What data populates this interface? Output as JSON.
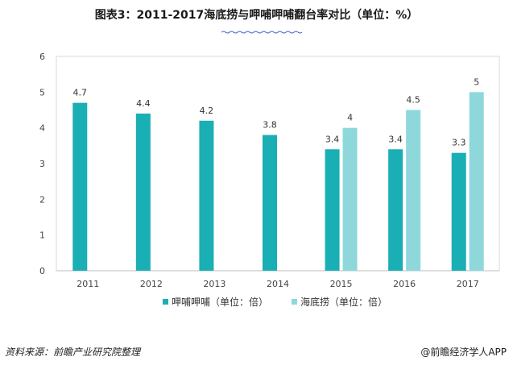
{
  "title": "图表3：2011-2017海底捞与呷哺呷哺翻台率对比（单位：%）",
  "footer": {
    "source": "资料来源：前瞻产业研究院整理",
    "brand": "@前瞻经济学人APP"
  },
  "colors": {
    "series1": "#1aaeb5",
    "series2": "#8ed8dc",
    "grid": "#d9d9d9",
    "decoration": "#3b5bdb"
  },
  "chart_data": {
    "type": "bar",
    "title": "图表3：2011-2017海底捞与呷哺呷哺翻台率对比（单位：%）",
    "categories": [
      "2011",
      "2012",
      "2013",
      "2014",
      "2015",
      "2016",
      "2017"
    ],
    "series": [
      {
        "name": "呷哺呷哺（单位：倍）",
        "values": [
          4.7,
          4.4,
          4.2,
          3.8,
          3.4,
          3.4,
          3.3
        ]
      },
      {
        "name": "海底捞（单位：倍）",
        "values": [
          null,
          null,
          null,
          null,
          4,
          4.5,
          5
        ]
      }
    ],
    "ylim": [
      0,
      6
    ],
    "yticks": [
      0,
      1,
      2,
      3,
      4,
      5,
      6
    ],
    "grid": false,
    "legend": "bottom"
  }
}
